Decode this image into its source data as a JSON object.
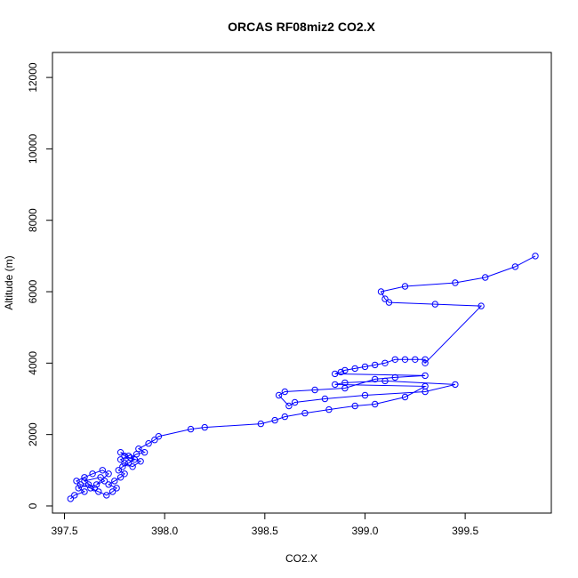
{
  "chart_data": {
    "type": "scatter",
    "title": "ORCAS RF08miz2 CO2.X",
    "xlabel": "CO2.X",
    "ylabel": "Altitude (m)",
    "xlim": [
      397.44,
      399.93
    ],
    "ylim": [
      -200,
      12700
    ],
    "xticks": [
      397.5,
      398.0,
      398.5,
      399.0,
      399.5
    ],
    "xtick_labels": [
      "397.5",
      "398.0",
      "398.5",
      "399.0",
      "399.5"
    ],
    "yticks": [
      0,
      2000,
      4000,
      6000,
      8000,
      10000,
      12000
    ],
    "ytick_labels": [
      "0",
      "2000",
      "4000",
      "6000",
      "8000",
      "10000",
      "12000"
    ],
    "grid": false,
    "legend": "none",
    "series": [
      {
        "color": "#0000ff",
        "marker": "open-circle",
        "connected": true,
        "x": [
          397.53,
          397.55,
          397.6,
          397.57,
          397.62,
          397.65,
          397.6,
          397.68,
          397.7,
          397.66,
          397.72,
          397.69,
          397.64,
          397.6,
          397.56,
          397.58,
          397.63,
          397.67,
          397.71,
          397.74,
          397.76,
          397.72,
          397.75,
          397.78,
          397.8,
          397.77,
          397.79,
          397.82,
          397.85,
          397.8,
          397.78,
          397.82,
          397.78,
          397.8,
          397.84,
          397.88,
          397.83,
          397.86,
          397.9,
          397.87,
          397.92,
          397.95,
          397.97,
          398.13,
          398.2,
          398.48,
          398.55,
          398.6,
          398.7,
          398.82,
          398.95,
          399.05,
          399.2,
          399.3,
          398.85,
          398.9,
          399.1,
          399.45,
          399.3,
          399.0,
          398.8,
          398.65,
          398.62,
          398.57,
          398.6,
          398.75,
          398.9,
          399.05,
          399.15,
          399.3,
          398.85,
          398.88,
          398.9,
          398.95,
          399.0,
          399.05,
          399.1,
          399.15,
          399.2,
          399.25,
          399.3,
          399.3,
          399.58,
          399.35,
          399.12,
          399.1,
          399.08,
          399.2,
          399.45,
          399.6,
          399.75,
          399.85
        ],
        "y": [
          200,
          300,
          400,
          500,
          600,
          500,
          700,
          800,
          700,
          600,
          900,
          1000,
          900,
          800,
          700,
          600,
          500,
          400,
          300,
          400,
          500,
          600,
          700,
          800,
          900,
          1000,
          1100,
          1200,
          1300,
          1400,
          1500,
          1400,
          1300,
          1200,
          1100,
          1250,
          1350,
          1450,
          1500,
          1600,
          1750,
          1850,
          1950,
          2150,
          2200,
          2300,
          2400,
          2500,
          2600,
          2700,
          2800,
          2850,
          3050,
          3350,
          3400,
          3450,
          3500,
          3400,
          3200,
          3100,
          3000,
          2900,
          2800,
          3100,
          3200,
          3250,
          3300,
          3550,
          3600,
          3650,
          3700,
          3750,
          3800,
          3850,
          3900,
          3950,
          4000,
          4100,
          4100,
          4100,
          4100,
          4000,
          5600,
          5650,
          5700,
          5800,
          6000,
          6150,
          6250,
          6400,
          6700,
          7000
        ]
      }
    ]
  }
}
